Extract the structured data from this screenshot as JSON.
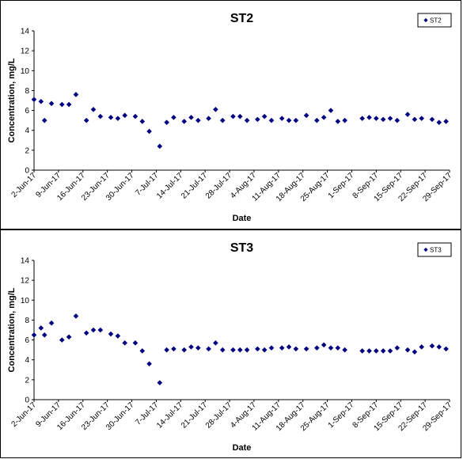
{
  "chart_data": [
    {
      "type": "scatter",
      "title": "ST2",
      "xlabel": "Date",
      "ylabel": "Concentration, mg/L",
      "ylim": [
        0,
        14
      ],
      "yticks": [
        "0",
        "2",
        "4",
        "6",
        "8",
        "10",
        "12",
        "14"
      ],
      "xticks": [
        "2-Jun-17",
        "9-Jun-17",
        "16-Jun-17",
        "23-Jun-17",
        "30-Jun-17",
        "7-Jul-17",
        "14-Jul-17",
        "21-Jul-17",
        "28-Jul-17",
        "4-Aug-17",
        "11-Aug-17",
        "18-Aug-17",
        "25-Aug-17",
        "1-Sep-17",
        "8-Sep-17",
        "15-Sep-17",
        "22-Sep-17",
        "29-Sep-17"
      ],
      "xlim": [
        "2017-06-02",
        "2017-09-29"
      ],
      "legend": "top-right",
      "grid": false,
      "series": [
        {
          "name": "ST2",
          "color": "#000080",
          "points": [
            {
              "x": "2017-06-02",
              "y": 7.1
            },
            {
              "x": "2017-06-04",
              "y": 6.9
            },
            {
              "x": "2017-06-05",
              "y": 5.0
            },
            {
              "x": "2017-06-07",
              "y": 6.7
            },
            {
              "x": "2017-06-10",
              "y": 6.6
            },
            {
              "x": "2017-06-12",
              "y": 6.6
            },
            {
              "x": "2017-06-14",
              "y": 7.6
            },
            {
              "x": "2017-06-17",
              "y": 5.0
            },
            {
              "x": "2017-06-19",
              "y": 6.1
            },
            {
              "x": "2017-06-21",
              "y": 5.4
            },
            {
              "x": "2017-06-24",
              "y": 5.3
            },
            {
              "x": "2017-06-26",
              "y": 5.2
            },
            {
              "x": "2017-06-28",
              "y": 5.5
            },
            {
              "x": "2017-07-01",
              "y": 5.4
            },
            {
              "x": "2017-07-03",
              "y": 4.9
            },
            {
              "x": "2017-07-05",
              "y": 3.9
            },
            {
              "x": "2017-07-08",
              "y": 2.4
            },
            {
              "x": "2017-07-10",
              "y": 4.8
            },
            {
              "x": "2017-07-12",
              "y": 5.3
            },
            {
              "x": "2017-07-15",
              "y": 4.9
            },
            {
              "x": "2017-07-17",
              "y": 5.3
            },
            {
              "x": "2017-07-19",
              "y": 5.0
            },
            {
              "x": "2017-07-22",
              "y": 5.2
            },
            {
              "x": "2017-07-24",
              "y": 6.1
            },
            {
              "x": "2017-07-26",
              "y": 5.0
            },
            {
              "x": "2017-07-29",
              "y": 5.4
            },
            {
              "x": "2017-07-31",
              "y": 5.4
            },
            {
              "x": "2017-08-02",
              "y": 5.0
            },
            {
              "x": "2017-08-05",
              "y": 5.1
            },
            {
              "x": "2017-08-07",
              "y": 5.4
            },
            {
              "x": "2017-08-09",
              "y": 5.0
            },
            {
              "x": "2017-08-12",
              "y": 5.2
            },
            {
              "x": "2017-08-14",
              "y": 5.0
            },
            {
              "x": "2017-08-16",
              "y": 5.0
            },
            {
              "x": "2017-08-19",
              "y": 5.5
            },
            {
              "x": "2017-08-22",
              "y": 5.0
            },
            {
              "x": "2017-08-24",
              "y": 5.3
            },
            {
              "x": "2017-08-26",
              "y": 6.0
            },
            {
              "x": "2017-08-28",
              "y": 4.9
            },
            {
              "x": "2017-08-30",
              "y": 5.0
            },
            {
              "x": "2017-09-04",
              "y": 5.2
            },
            {
              "x": "2017-09-06",
              "y": 5.3
            },
            {
              "x": "2017-09-08",
              "y": 5.2
            },
            {
              "x": "2017-09-10",
              "y": 5.1
            },
            {
              "x": "2017-09-12",
              "y": 5.2
            },
            {
              "x": "2017-09-14",
              "y": 5.0
            },
            {
              "x": "2017-09-17",
              "y": 5.6
            },
            {
              "x": "2017-09-19",
              "y": 5.1
            },
            {
              "x": "2017-09-21",
              "y": 5.2
            },
            {
              "x": "2017-09-24",
              "y": 5.1
            },
            {
              "x": "2017-09-26",
              "y": 4.8
            },
            {
              "x": "2017-09-28",
              "y": 4.9
            }
          ]
        }
      ]
    },
    {
      "type": "scatter",
      "title": "ST3",
      "xlabel": "Date",
      "ylabel": "Concentration, mg/L",
      "ylim": [
        0,
        14
      ],
      "yticks": [
        "0",
        "2",
        "4",
        "6",
        "8",
        "10",
        "12",
        "14"
      ],
      "xticks": [
        "2-Jun-17",
        "9-Jun-17",
        "16-Jun-17",
        "23-Jun-17",
        "30-Jun-17",
        "7-Jul-17",
        "14-Jul-17",
        "21-Jul-17",
        "28-Jul-17",
        "4-Aug-17",
        "11-Aug-17",
        "18-Aug-17",
        "25-Aug-17",
        "1-Sep-17",
        "8-Sep-17",
        "15-Sep-17",
        "22-Sep-17",
        "29-Sep-17"
      ],
      "xlim": [
        "2017-06-02",
        "2017-09-29"
      ],
      "legend": "top-right",
      "grid": false,
      "series": [
        {
          "name": "ST3",
          "color": "#000080",
          "points": [
            {
              "x": "2017-06-02",
              "y": 6.5
            },
            {
              "x": "2017-06-04",
              "y": 7.2
            },
            {
              "x": "2017-06-05",
              "y": 6.5
            },
            {
              "x": "2017-06-07",
              "y": 7.7
            },
            {
              "x": "2017-06-10",
              "y": 6.0
            },
            {
              "x": "2017-06-12",
              "y": 6.3
            },
            {
              "x": "2017-06-14",
              "y": 8.4
            },
            {
              "x": "2017-06-17",
              "y": 6.7
            },
            {
              "x": "2017-06-19",
              "y": 7.0
            },
            {
              "x": "2017-06-21",
              "y": 7.0
            },
            {
              "x": "2017-06-24",
              "y": 6.6
            },
            {
              "x": "2017-06-26",
              "y": 6.4
            },
            {
              "x": "2017-06-28",
              "y": 5.7
            },
            {
              "x": "2017-07-01",
              "y": 5.7
            },
            {
              "x": "2017-07-03",
              "y": 4.9
            },
            {
              "x": "2017-07-05",
              "y": 3.6
            },
            {
              "x": "2017-07-08",
              "y": 1.7
            },
            {
              "x": "2017-07-10",
              "y": 5.0
            },
            {
              "x": "2017-07-12",
              "y": 5.1
            },
            {
              "x": "2017-07-15",
              "y": 5.0
            },
            {
              "x": "2017-07-17",
              "y": 5.3
            },
            {
              "x": "2017-07-19",
              "y": 5.2
            },
            {
              "x": "2017-07-22",
              "y": 5.1
            },
            {
              "x": "2017-07-24",
              "y": 5.7
            },
            {
              "x": "2017-07-26",
              "y": 5.0
            },
            {
              "x": "2017-07-29",
              "y": 5.0
            },
            {
              "x": "2017-07-31",
              "y": 5.0
            },
            {
              "x": "2017-08-02",
              "y": 5.0
            },
            {
              "x": "2017-08-05",
              "y": 5.1
            },
            {
              "x": "2017-08-07",
              "y": 5.0
            },
            {
              "x": "2017-08-09",
              "y": 5.2
            },
            {
              "x": "2017-08-12",
              "y": 5.2
            },
            {
              "x": "2017-08-14",
              "y": 5.3
            },
            {
              "x": "2017-08-16",
              "y": 5.1
            },
            {
              "x": "2017-08-19",
              "y": 5.1
            },
            {
              "x": "2017-08-22",
              "y": 5.2
            },
            {
              "x": "2017-08-24",
              "y": 5.5
            },
            {
              "x": "2017-08-26",
              "y": 5.2
            },
            {
              "x": "2017-08-28",
              "y": 5.2
            },
            {
              "x": "2017-08-30",
              "y": 5.0
            },
            {
              "x": "2017-09-04",
              "y": 4.9
            },
            {
              "x": "2017-09-06",
              "y": 4.9
            },
            {
              "x": "2017-09-08",
              "y": 4.9
            },
            {
              "x": "2017-09-10",
              "y": 4.9
            },
            {
              "x": "2017-09-12",
              "y": 4.9
            },
            {
              "x": "2017-09-14",
              "y": 5.2
            },
            {
              "x": "2017-09-17",
              "y": 5.0
            },
            {
              "x": "2017-09-19",
              "y": 4.8
            },
            {
              "x": "2017-09-21",
              "y": 5.3
            },
            {
              "x": "2017-09-24",
              "y": 5.4
            },
            {
              "x": "2017-09-26",
              "y": 5.3
            },
            {
              "x": "2017-09-28",
              "y": 5.1
            }
          ]
        }
      ]
    }
  ]
}
